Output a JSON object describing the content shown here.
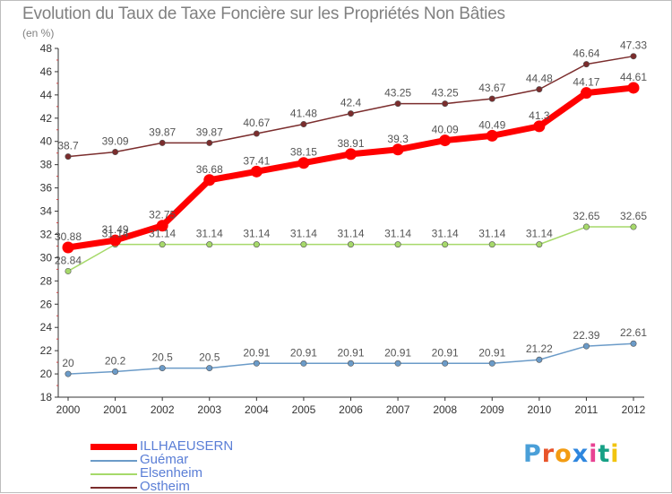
{
  "title": "Evolution du Taux de Taxe Foncière sur les Propriétés Non Bâties",
  "unit_label": "(en %)",
  "chart_data": {
    "type": "line",
    "x": [
      "2000",
      "2001",
      "2002",
      "2003",
      "2004",
      "2005",
      "2006",
      "2007",
      "2008",
      "2009",
      "2010",
      "2011",
      "2012"
    ],
    "ylim": [
      18,
      48
    ],
    "yticks": [
      18,
      20,
      22,
      24,
      26,
      28,
      30,
      32,
      34,
      36,
      38,
      40,
      42,
      44,
      46,
      48
    ],
    "grid": false,
    "legend_position": "bottom-left",
    "series": [
      {
        "name": "ILLHAEUSERN",
        "color": "#ff0000",
        "highlight": true,
        "values": [
          30.88,
          31.49,
          32.75,
          36.68,
          37.41,
          38.15,
          38.91,
          39.3,
          40.09,
          40.49,
          41.3,
          44.17,
          44.61
        ],
        "labels": [
          "30.88",
          "31.49",
          "32.75",
          "36.68",
          "37.41",
          "38.15",
          "38.91",
          "39.3",
          "40.09",
          "40.49",
          "41.3",
          "44.17",
          "44.61"
        ]
      },
      {
        "name": "Guémar",
        "color": "#6b9bc8",
        "values": [
          20,
          20.2,
          20.5,
          20.5,
          20.91,
          20.91,
          20.91,
          20.91,
          20.91,
          20.91,
          21.22,
          22.39,
          22.61
        ],
        "labels": [
          "20",
          "20.2",
          "20.5",
          "20.5",
          "20.91",
          "20.91",
          "20.91",
          "20.91",
          "20.91",
          "20.91",
          "21.22",
          "22.39",
          "22.61"
        ]
      },
      {
        "name": "Elsenheim",
        "color": "#a6d96a",
        "values": [
          28.84,
          31.14,
          31.14,
          31.14,
          31.14,
          31.14,
          31.14,
          31.14,
          31.14,
          31.14,
          31.14,
          32.65,
          32.65
        ],
        "labels": [
          "28.84",
          "31.14",
          "31.14",
          "31.14",
          "31.14",
          "31.14",
          "31.14",
          "31.14",
          "31.14",
          "31.14",
          "31.14",
          "32.65",
          "32.65"
        ]
      },
      {
        "name": "Ostheim",
        "color": "#7b2d2d",
        "values": [
          38.7,
          39.09,
          39.87,
          39.87,
          40.67,
          41.48,
          42.4,
          43.25,
          43.25,
          43.67,
          44.48,
          46.64,
          47.33
        ],
        "labels": [
          "38.7",
          "39.09",
          "39.87",
          "39.87",
          "40.67",
          "41.48",
          "42.4",
          "43.25",
          "43.25",
          "43.67",
          "44.48",
          "46.64",
          "47.33"
        ]
      }
    ]
  },
  "legend": [
    {
      "label": "ILLHAEUSERN",
      "color": "#ff0000"
    },
    {
      "label": "Guémar",
      "color": "#6b9bc8"
    },
    {
      "label": "Elsenheim",
      "color": "#a6d96a"
    },
    {
      "label": "Ostheim",
      "color": "#7b2d2d"
    }
  ],
  "logo": {
    "text": "Proxiti",
    "letter_colors": [
      "#4a9fd8",
      "#e8542a",
      "#f39c12",
      "#2e86de",
      "#e84393",
      "#16a085",
      "#f1c40f"
    ]
  }
}
